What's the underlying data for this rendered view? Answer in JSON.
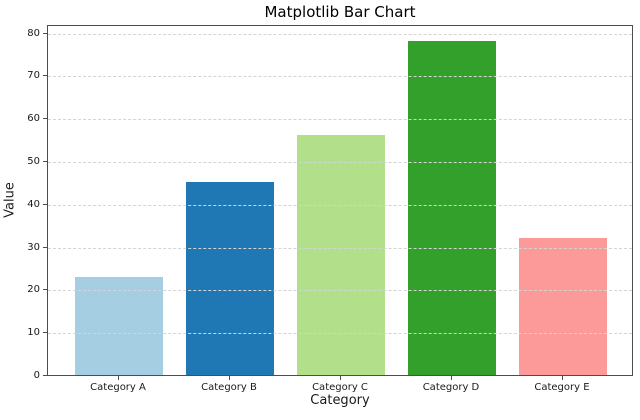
{
  "chart_data": {
    "type": "bar",
    "title": "Matplotlib Bar Chart",
    "categories": [
      "Category A",
      "Category B",
      "Category C",
      "Category D",
      "Category E"
    ],
    "values": [
      23,
      45,
      56,
      78,
      32
    ],
    "bar_colors": [
      "#a6cee3",
      "#1f78b4",
      "#b2df8a",
      "#33a02c",
      "#fb9a99"
    ],
    "xlabel": "Category",
    "ylabel": "Value",
    "ylim": [
      0,
      82
    ],
    "yticks": [
      0,
      10,
      20,
      30,
      40,
      50,
      60,
      70,
      80
    ],
    "grid": true,
    "grid_linestyle": "dashed",
    "grid_over_bars": true,
    "legend_position": "none"
  },
  "colors": {
    "background": "#ffffff",
    "spine": "#4d4d4d",
    "grid": "#d4d4d4",
    "text": "#1a1a1a",
    "title_text": "#000000"
  }
}
